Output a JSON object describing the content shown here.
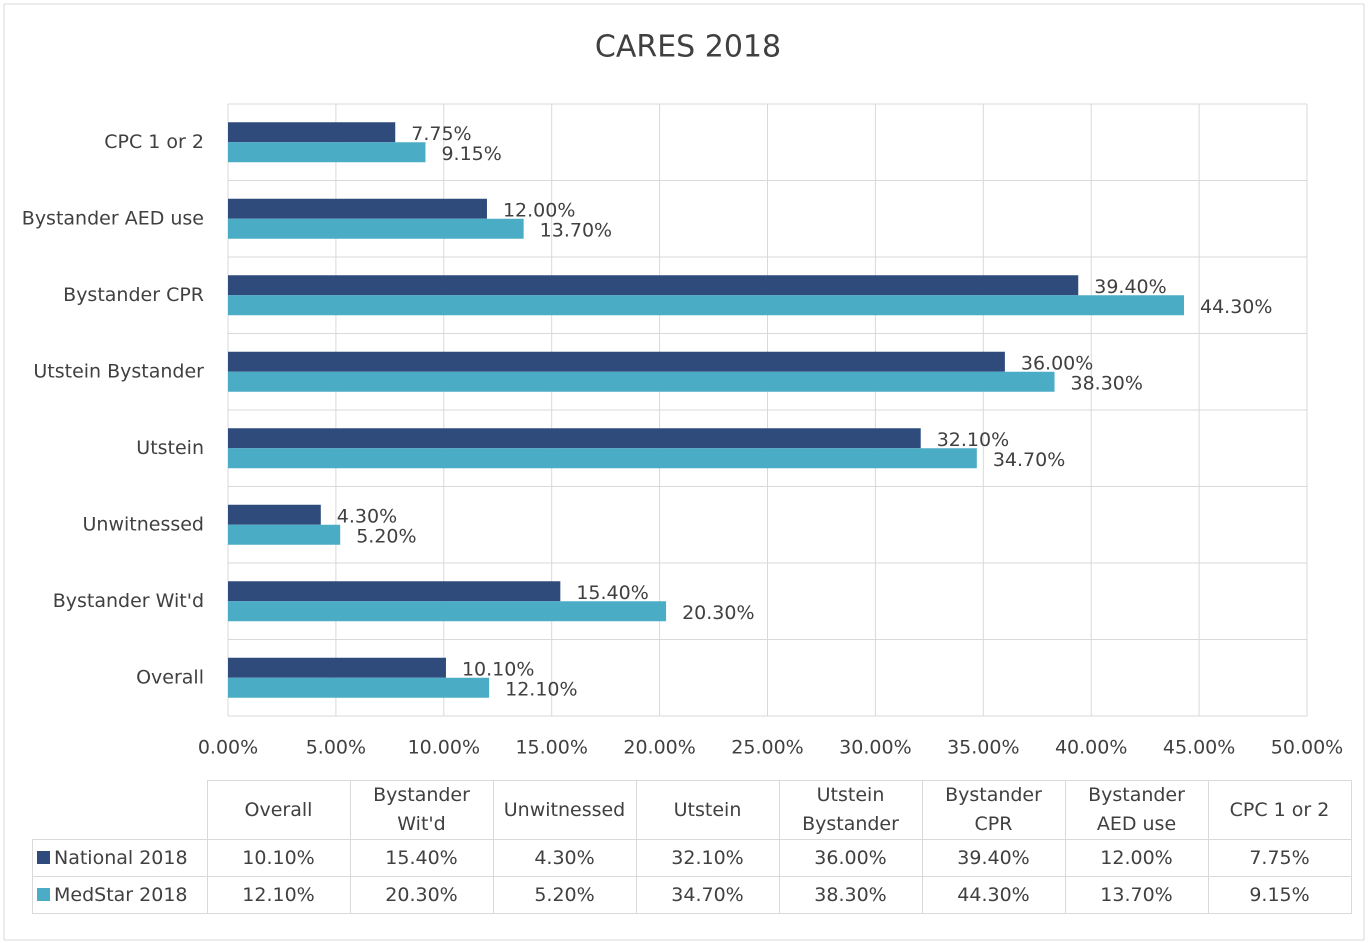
{
  "chart_data": {
    "type": "hbar",
    "title": "CARES 2018",
    "categories": [
      "Overall",
      "Bystander Wit'd",
      "Unwitnessed",
      "Utstein",
      "Utstein Bystander",
      "Bystander CPR",
      "Bystander AED use",
      "CPC 1 or 2"
    ],
    "series": [
      {
        "name": "National 2018",
        "color": "#2f4b7c",
        "values": [
          10.1,
          15.4,
          4.3,
          32.1,
          36.0,
          39.4,
          12.0,
          7.75
        ],
        "value_labels": [
          "10.10%",
          "15.40%",
          "4.30%",
          "32.10%",
          "36.00%",
          "39.40%",
          "12.00%",
          "7.75%"
        ]
      },
      {
        "name": "MedStar 2018",
        "color": "#4bacc6",
        "values": [
          12.1,
          20.3,
          5.2,
          34.7,
          38.3,
          44.3,
          13.7,
          9.15
        ],
        "value_labels": [
          "12.10%",
          "20.30%",
          "5.20%",
          "34.70%",
          "38.30%",
          "44.30%",
          "13.70%",
          "9.15%"
        ]
      }
    ],
    "xlim": [
      0,
      50
    ],
    "xticks": [
      {
        "value": 0,
        "label": "0.00%"
      },
      {
        "value": 5,
        "label": "5.00%"
      },
      {
        "value": 10,
        "label": "10.00%"
      },
      {
        "value": 15,
        "label": "15.00%"
      },
      {
        "value": 20,
        "label": "20.00%"
      },
      {
        "value": 25,
        "label": "25.00%"
      },
      {
        "value": 30,
        "label": "30.00%"
      },
      {
        "value": 35,
        "label": "35.00%"
      },
      {
        "value": 40,
        "label": "40.00%"
      },
      {
        "value": 45,
        "label": "45.00%"
      },
      {
        "value": 50,
        "label": "50.00%"
      }
    ],
    "grid": true
  }
}
